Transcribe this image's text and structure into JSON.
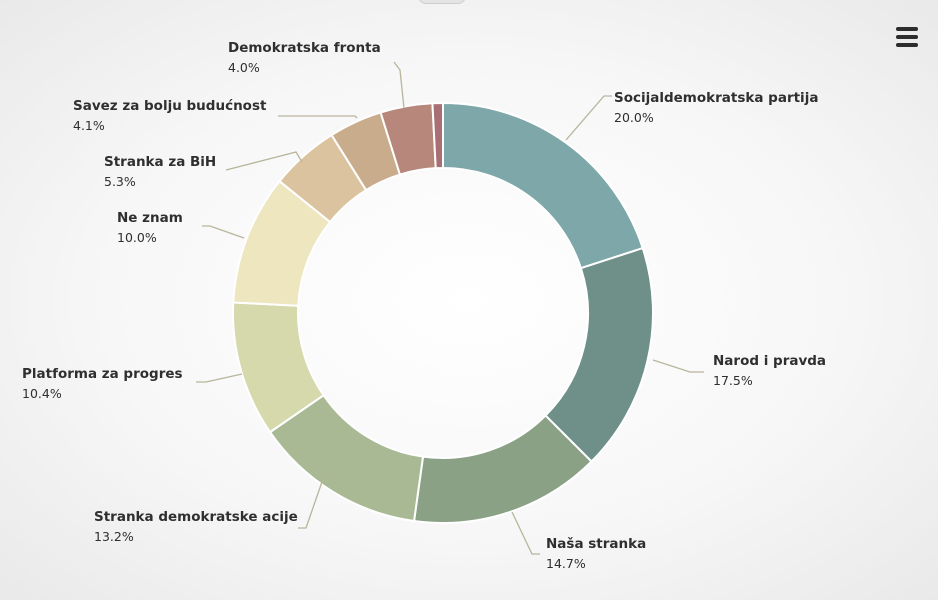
{
  "chart_data": {
    "type": "pie",
    "variant": "donut",
    "start": "top, clockwise",
    "slices": [
      {
        "label": "Socijaldemokratska partija",
        "value": 20.0,
        "display": "20.0%",
        "color": "#7ea7a9"
      },
      {
        "label": "Narod i pravda",
        "value": 17.5,
        "display": "17.5%",
        "color": "#6e9089"
      },
      {
        "label": "Naša stranka",
        "value": 14.7,
        "display": "14.7%",
        "color": "#8aa186"
      },
      {
        "label": "Stranka demokratske acije",
        "value": 13.2,
        "display": "13.2%",
        "color": "#a9b994"
      },
      {
        "label": "Platforma za progres",
        "value": 10.4,
        "display": "10.4%",
        "color": "#d5d9ac"
      },
      {
        "label": "Ne znam",
        "value": 10.0,
        "display": "10.0%",
        "color": "#ede6bf"
      },
      {
        "label": "Stranka za BiH",
        "value": 5.3,
        "display": "5.3%",
        "color": "#dbc39f"
      },
      {
        "label": "Savez za bolju budućnost",
        "value": 4.1,
        "display": "4.1%",
        "color": "#c9ac8c"
      },
      {
        "label": "Demokratska fronta",
        "value": 4.0,
        "display": "4.0%",
        "color": "#b6877a"
      },
      {
        "label": "",
        "value": 0.8,
        "display": "",
        "color": "#a96f74"
      }
    ],
    "connector_color": "#b8b59c",
    "background": "#f4f4f4"
  },
  "toolbar": {
    "menu_icon": "hamburger-menu-icon"
  }
}
